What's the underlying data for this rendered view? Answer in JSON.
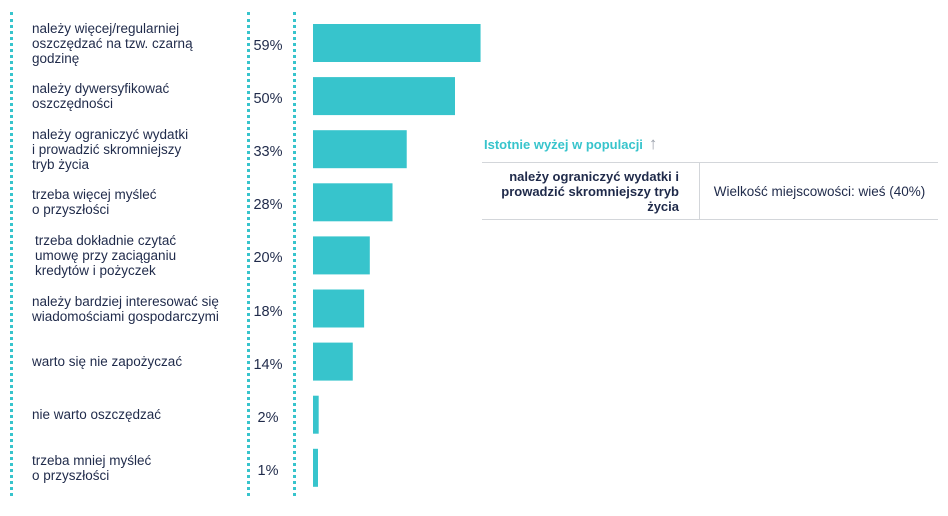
{
  "chart_data": {
    "type": "bar",
    "orientation": "horizontal",
    "categories": [
      "należy więcej/regularniej oszczędzać na tzw. czarną godzinę",
      "należy dywersyfikować oszczędności",
      "należy ograniczyć wydatki i prowadzić skromniejszy tryb życia",
      "trzeba więcej myśleć o przyszłości",
      "trzeba dokładnie czytać umowę przy zaciąganiu kredytów i pożyczek",
      "należy bardziej interesować się wiadomościami gospodarczymi",
      "warto się nie zapożyczać",
      "nie warto oszczędzać",
      "trzeba mniej myśleć o przyszłości"
    ],
    "values": [
      59,
      50,
      33,
      28,
      20,
      18,
      14,
      2,
      1
    ],
    "value_labels": [
      "59%",
      "50%",
      "33%",
      "28%",
      "20%",
      "18%",
      "14%",
      "2%",
      "1%"
    ],
    "xlim": [
      0,
      100
    ],
    "bar_color": "#37c4cc"
  },
  "significance": {
    "title": "Istotnie wyżej w populacji",
    "arrow": "↑",
    "row_label": "należy ograniczyć wydatki i prowadzić skromniejszy tryb życia",
    "row_value": "Wielkość miejscowości: wieś (40%)"
  },
  "colors": {
    "accent": "#37c4cc",
    "text": "#1f2a4a",
    "rule": "#d3d6da"
  }
}
